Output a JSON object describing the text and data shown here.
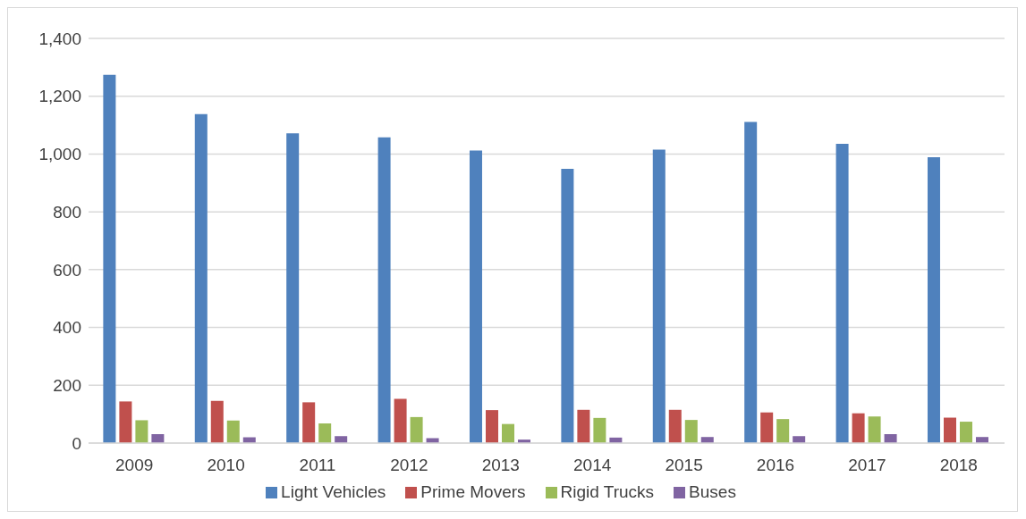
{
  "chart_data": {
    "type": "bar",
    "categories": [
      "2009",
      "2010",
      "2011",
      "2012",
      "2013",
      "2014",
      "2015",
      "2016",
      "2017",
      "2018"
    ],
    "series": [
      {
        "name": "Light Vehicles",
        "color": "#4f81bd",
        "values": [
          1274,
          1138,
          1072,
          1058,
          1012,
          949,
          1015,
          1111,
          1035,
          989
        ]
      },
      {
        "name": "Prime Movers",
        "color": "#c0504d",
        "values": [
          144,
          146,
          141,
          153,
          114,
          115,
          115,
          106,
          103,
          88
        ]
      },
      {
        "name": "Rigid Trucks",
        "color": "#9bbb59",
        "values": [
          79,
          78,
          68,
          90,
          66,
          87,
          80,
          83,
          92,
          74
        ]
      },
      {
        "name": "Buses",
        "color": "#8064a2",
        "values": [
          31,
          20,
          24,
          17,
          12,
          19,
          21,
          24,
          31,
          21
        ]
      }
    ],
    "ylim": [
      0,
      1400
    ],
    "yticks": [
      0,
      {
        "value": 200,
        "label": "200"
      },
      {
        "value": 400,
        "label": "400"
      },
      {
        "value": 600,
        "label": "600"
      },
      {
        "value": 800,
        "label": "800"
      },
      {
        "value": 1000,
        "label": "1,000"
      },
      {
        "value": 1200,
        "label": "1,200"
      },
      {
        "value": 1400,
        "label": "1,400"
      }
    ],
    "grid": "y",
    "legend": "bottom"
  }
}
